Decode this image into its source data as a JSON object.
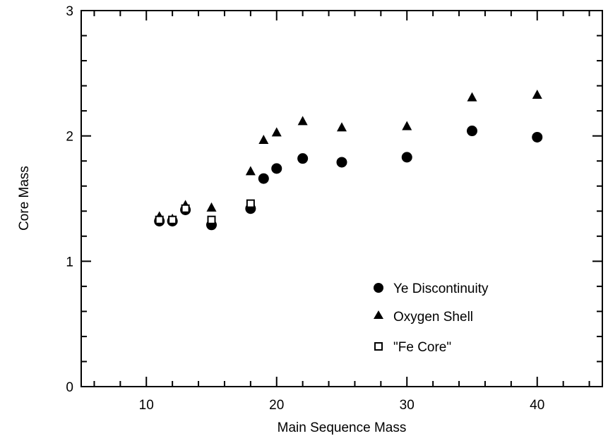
{
  "chart_data": {
    "type": "scatter",
    "title": "",
    "xlabel": "Main Sequence Mass",
    "ylabel": "Core Mass",
    "xlim": [
      5,
      45
    ],
    "ylim": [
      0,
      3
    ],
    "xticks_major": [
      10,
      20,
      30,
      40
    ],
    "yticks_major": [
      0,
      1,
      2,
      3
    ],
    "xtick_minor_step": 2,
    "ytick_minor_step": 0.2,
    "grid": false,
    "legend_position": "bottom-right",
    "series": [
      {
        "name": "Ye Discontinuity",
        "marker": "filled-circle",
        "x": [
          11,
          12,
          13,
          15,
          18,
          19,
          20,
          22,
          25,
          30,
          35,
          40
        ],
        "y": [
          1.32,
          1.32,
          1.41,
          1.29,
          1.42,
          1.66,
          1.74,
          1.82,
          1.79,
          1.83,
          2.04,
          1.99
        ]
      },
      {
        "name": "Oxygen Shell",
        "marker": "filled-triangle",
        "x": [
          11,
          12,
          13,
          15,
          18,
          19,
          20,
          22,
          25,
          30,
          35,
          40
        ],
        "y": [
          1.36,
          1.34,
          1.45,
          1.43,
          1.72,
          1.97,
          2.03,
          2.12,
          2.07,
          2.08,
          2.31,
          2.33
        ]
      },
      {
        "name": "\"Fe Core\"",
        "marker": "open-square",
        "x": [
          11,
          12,
          13,
          15,
          18
        ],
        "y": [
          1.33,
          1.33,
          1.42,
          1.33,
          1.46
        ]
      }
    ]
  }
}
